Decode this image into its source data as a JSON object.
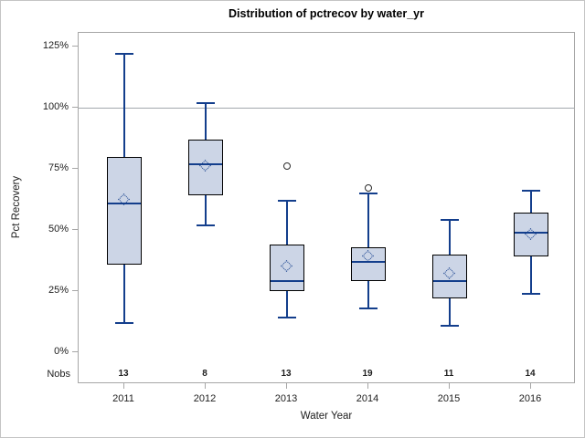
{
  "figure": {
    "title": "Distribution of pctrecov by water_yr",
    "ylabel": "Pct Recovery",
    "xlabel": "Water Year",
    "nobs_label": "Nobs"
  },
  "colors": {
    "box_fill": "#ccd5e6",
    "box_border": "#000000",
    "line": "#133e8c",
    "frame": "#a6a6a6",
    "gridline": "#a2a8ad",
    "outlier": "#2b2b2b",
    "text": "#202020",
    "page_border": "#c4c4c4"
  },
  "chart_data": {
    "type": "boxplot",
    "title": "Distribution of pctrecov by water_yr",
    "xlabel": "Water Year",
    "ylabel": "Pct Recovery",
    "ylim": [
      0,
      125
    ],
    "grid": false,
    "refline": 100,
    "y_ticks": [
      {
        "value": 125,
        "label": "125%"
      },
      {
        "value": 100,
        "label": "100%"
      },
      {
        "value": 75,
        "label": "75%"
      },
      {
        "value": 50,
        "label": "50%"
      },
      {
        "value": 25,
        "label": "25%"
      },
      {
        "value": 0,
        "label": "0%"
      }
    ],
    "categories": [
      "2011",
      "2012",
      "2013",
      "2014",
      "2015",
      "2016"
    ],
    "series": [
      {
        "water_yr": "2011",
        "nobs": 13,
        "whisker_low": 12,
        "q1": 36,
        "median": 61,
        "q3": 80,
        "whisker_high": 122,
        "mean": 62,
        "outliers": []
      },
      {
        "water_yr": "2012",
        "nobs": 8,
        "whisker_low": 52,
        "q1": 64,
        "median": 77,
        "q3": 87,
        "whisker_high": 102,
        "mean": 76,
        "outliers": []
      },
      {
        "water_yr": "2013",
        "nobs": 13,
        "whisker_low": 14,
        "q1": 25,
        "median": 29,
        "q3": 44,
        "whisker_high": 62,
        "mean": 35,
        "outliers": [
          76
        ]
      },
      {
        "water_yr": "2014",
        "nobs": 19,
        "whisker_low": 18,
        "q1": 29,
        "median": 37,
        "q3": 43,
        "whisker_high": 65,
        "mean": 39,
        "outliers": [
          67
        ]
      },
      {
        "water_yr": "2015",
        "nobs": 11,
        "whisker_low": 11,
        "q1": 22,
        "median": 29,
        "q3": 40,
        "whisker_high": 54,
        "mean": 32,
        "outliers": []
      },
      {
        "water_yr": "2016",
        "nobs": 14,
        "whisker_low": 24,
        "q1": 39,
        "median": 49,
        "q3": 57,
        "whisker_high": 66,
        "mean": 48,
        "outliers": []
      }
    ]
  }
}
